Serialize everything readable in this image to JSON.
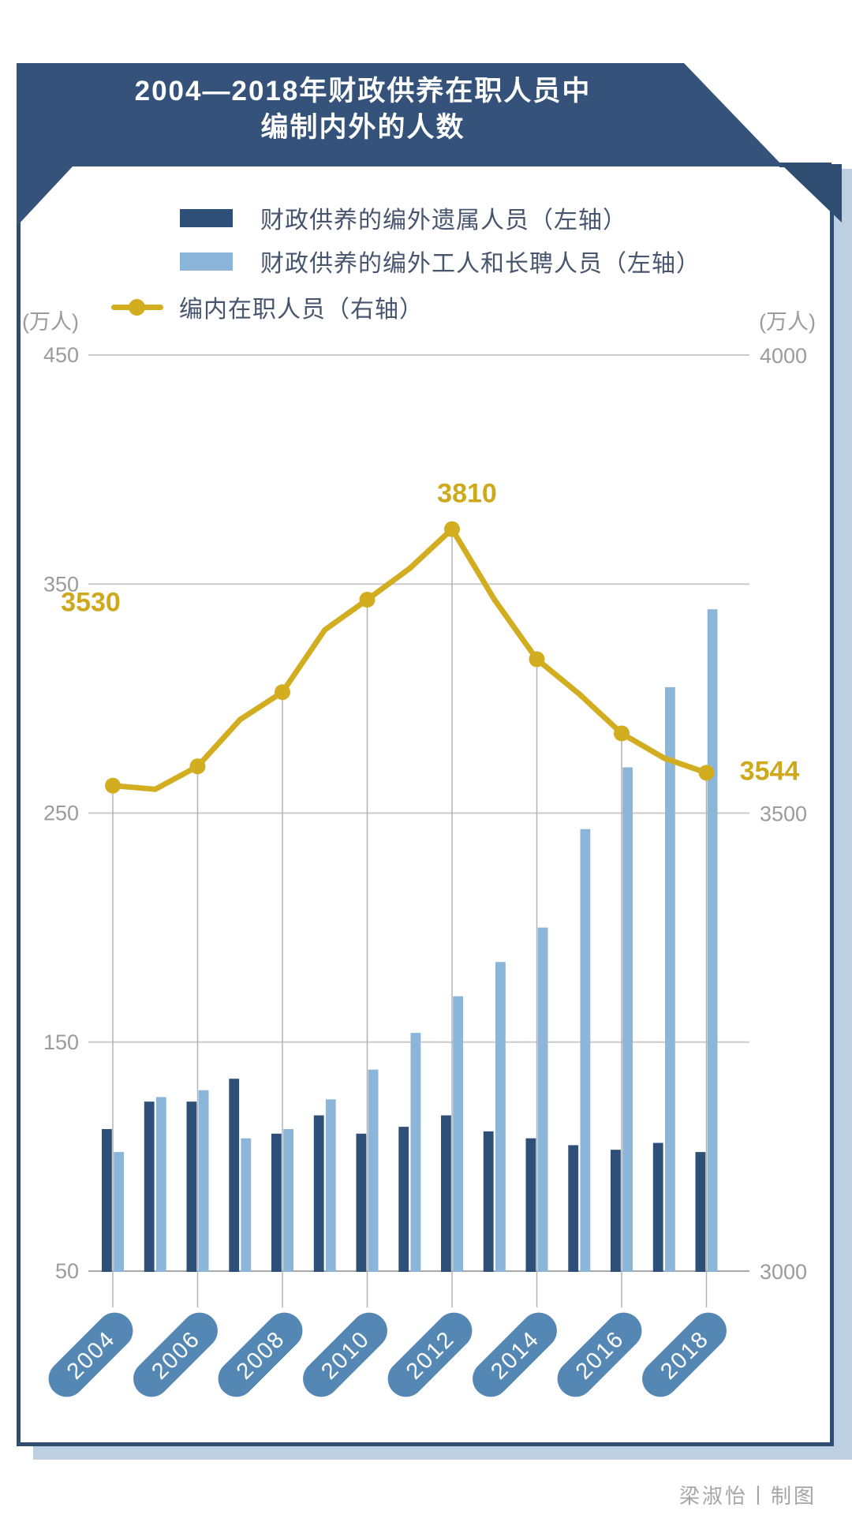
{
  "header": {
    "title_line1": "2004—2018年财政供养在职人员中",
    "title_line2": "编制内外的人数"
  },
  "legend": {
    "items": [
      {
        "label": "财政供养的编外遗属人员（左轴）",
        "type": "bar",
        "color": "#2e5078"
      },
      {
        "label": "财政供养的编外工人和长聘人员（左轴）",
        "type": "bar",
        "color": "#8cb6d9"
      },
      {
        "label": "编内在职人员（右轴）",
        "type": "line",
        "color": "#d2ad20"
      }
    ]
  },
  "axes": {
    "left": {
      "unit": "(万人)",
      "ticks": [
        450,
        350,
        250,
        150,
        50
      ]
    },
    "right": {
      "unit": "(万人)",
      "ticks": [
        4000,
        3500,
        3000
      ]
    }
  },
  "credit": "梁淑怡丨制图",
  "colors": {
    "banner": "#35537a",
    "frame_border": "#2f4d71",
    "shadow": "#bdcfe1",
    "bar_dark": "#2e5078",
    "bar_light": "#8cb6d9",
    "line": "#d2ad20",
    "value_label": "#cfa91c",
    "pill": "#5587b5",
    "grid": "#cbcbcb",
    "axis_line": "#a9a9a9",
    "dropline": "#b3b3b3",
    "tick_text": "#9b9b9b",
    "legend_text": "#47566e",
    "title_text": "#ffffff",
    "credit_text": "#a5a5a5"
  },
  "chart_data": {
    "type": "bar",
    "subtype": "grouped-bars-plus-line-dual-axis",
    "title": "2004—2018年财政供养在职人员中编制内外的人数",
    "years": [
      2004,
      2005,
      2006,
      2007,
      2008,
      2009,
      2010,
      2011,
      2012,
      2013,
      2014,
      2015,
      2016,
      2017,
      2018
    ],
    "x_tick_years": [
      2004,
      2006,
      2008,
      2010,
      2012,
      2014,
      2016,
      2018
    ],
    "bar_series": [
      {
        "name": "财政供养的编外遗属人员（左轴）",
        "axis": "left",
        "values": [
          112,
          124,
          124,
          134,
          110,
          118,
          110,
          113,
          118,
          111,
          108,
          105,
          103,
          106,
          102
        ]
      },
      {
        "name": "财政供养的编外工人和长聘人员（左轴）",
        "axis": "left",
        "values": [
          102,
          126,
          129,
          108,
          112,
          125,
          138,
          154,
          170,
          185,
          200,
          243,
          270,
          305,
          339
        ]
      }
    ],
    "line_series": {
      "name": "编内在职人员（右轴）",
      "axis": "right",
      "values": [
        3530,
        3526,
        3551,
        3602,
        3632,
        3700,
        3733,
        3767,
        3810,
        3733,
        3668,
        3630,
        3587,
        3560,
        3544
      ],
      "labels": [
        {
          "index": 0,
          "text": "3530"
        },
        {
          "index": 8,
          "text": "3810"
        },
        {
          "index": 14,
          "text": "3544"
        }
      ]
    },
    "left_axis": {
      "unit": "(万人)",
      "min": 50,
      "max": 450,
      "ticks": [
        450,
        350,
        250,
        150,
        50
      ]
    },
    "right_axis": {
      "unit": "(万人)",
      "min": 3000,
      "max": 4000,
      "ticks": [
        4000,
        3500,
        3000
      ]
    },
    "grid": "horizontal-plus-droplines-at-labeled-years",
    "legend_position": "top-left"
  }
}
